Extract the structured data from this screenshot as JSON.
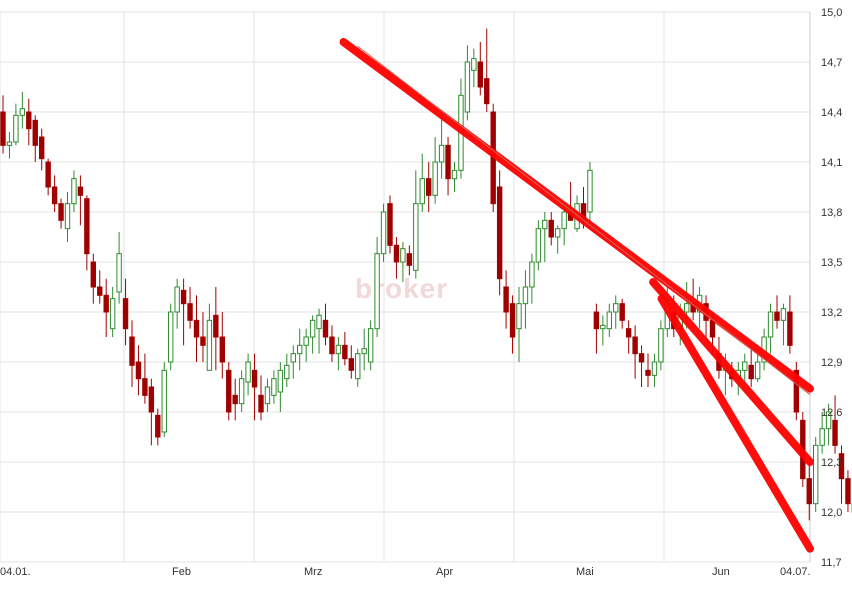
{
  "chart_data": {
    "type": "candlestick",
    "title": "",
    "xlabel": "",
    "ylabel": "",
    "ylim": [
      11.7,
      15.0
    ],
    "y_ticks": [
      "15,0",
      "14,7",
      "14,4",
      "14,1",
      "13,8",
      "13,5",
      "13,2",
      "12,9",
      "12,6",
      "12,3",
      "12,0",
      "11,7"
    ],
    "x_ticks": [
      "04.01.",
      "Feb",
      "Mrz",
      "Apr",
      "Mai",
      "Jun",
      "04.07."
    ],
    "grid": true,
    "watermark": "broker",
    "colors": {
      "up": "#2e8b2e",
      "down": "#a10000",
      "trendline": "#ff0000",
      "grid": "#e3e3e3"
    },
    "candles": [
      [
        14.4,
        14.5,
        14.15,
        14.2
      ],
      [
        14.2,
        14.28,
        14.12,
        14.22
      ],
      [
        14.22,
        14.45,
        14.2,
        14.38
      ],
      [
        14.38,
        14.52,
        14.3,
        14.42
      ],
      [
        14.4,
        14.48,
        14.2,
        14.3
      ],
      [
        14.35,
        14.38,
        14.1,
        14.2
      ],
      [
        14.25,
        14.3,
        14.05,
        14.12
      ],
      [
        14.1,
        14.12,
        13.9,
        13.95
      ],
      [
        13.95,
        14.02,
        13.8,
        13.85
      ],
      [
        13.85,
        13.88,
        13.7,
        13.75
      ],
      [
        13.7,
        13.92,
        13.62,
        13.85
      ],
      [
        13.85,
        14.05,
        13.8,
        14.0
      ],
      [
        13.95,
        14.02,
        13.72,
        13.9
      ],
      [
        13.88,
        13.9,
        13.45,
        13.55
      ],
      [
        13.5,
        13.55,
        13.25,
        13.35
      ],
      [
        13.35,
        13.45,
        13.25,
        13.3
      ],
      [
        13.3,
        13.4,
        13.05,
        13.2
      ],
      [
        13.1,
        13.35,
        13.05,
        13.28
      ],
      [
        13.32,
        13.68,
        13.25,
        13.55
      ],
      [
        13.28,
        13.4,
        13.0,
        13.1
      ],
      [
        13.05,
        13.15,
        12.75,
        12.88
      ],
      [
        12.9,
        13.0,
        12.7,
        12.8
      ],
      [
        12.8,
        12.95,
        12.65,
        12.7
      ],
      [
        12.75,
        12.8,
        12.4,
        12.6
      ],
      [
        12.58,
        12.62,
        12.4,
        12.45
      ],
      [
        12.48,
        12.9,
        12.45,
        12.85
      ],
      [
        12.9,
        13.25,
        12.85,
        13.2
      ],
      [
        13.2,
        13.4,
        13.1,
        13.35
      ],
      [
        13.33,
        13.4,
        13.0,
        13.25
      ],
      [
        13.25,
        13.35,
        13.1,
        13.15
      ],
      [
        13.15,
        13.3,
        12.9,
        13.05
      ],
      [
        13.05,
        13.2,
        12.9,
        13.0
      ],
      [
        12.85,
        13.25,
        12.85,
        13.15
      ],
      [
        13.18,
        13.35,
        12.85,
        13.05
      ],
      [
        13.05,
        13.2,
        12.8,
        12.9
      ],
      [
        12.85,
        12.9,
        12.55,
        12.6
      ],
      [
        12.7,
        12.8,
        12.55,
        12.65
      ],
      [
        12.65,
        12.85,
        12.6,
        12.8
      ],
      [
        12.78,
        12.95,
        12.7,
        12.9
      ],
      [
        12.85,
        12.95,
        12.55,
        12.75
      ],
      [
        12.7,
        12.82,
        12.55,
        12.6
      ],
      [
        12.65,
        12.8,
        12.6,
        12.75
      ],
      [
        12.7,
        12.85,
        12.65,
        12.8
      ],
      [
        12.72,
        12.9,
        12.6,
        12.85
      ],
      [
        12.8,
        12.95,
        12.75,
        12.88
      ],
      [
        12.9,
        13.0,
        12.8,
        12.95
      ],
      [
        12.95,
        13.1,
        12.85,
        13.0
      ],
      [
        13.0,
        13.1,
        12.9,
        13.05
      ],
      [
        13.05,
        13.18,
        12.95,
        13.15
      ],
      [
        13.1,
        13.22,
        12.95,
        13.18
      ],
      [
        13.15,
        13.25,
        13.0,
        13.05
      ],
      [
        13.05,
        13.12,
        12.9,
        12.95
      ],
      [
        12.95,
        13.05,
        12.85,
        13.0
      ],
      [
        13.0,
        13.08,
        12.88,
        12.92
      ],
      [
        12.92,
        13.0,
        12.8,
        12.85
      ],
      [
        12.8,
        12.98,
        12.75,
        12.95
      ],
      [
        12.95,
        13.1,
        12.85,
        12.98
      ],
      [
        12.9,
        13.15,
        12.85,
        13.1
      ],
      [
        13.1,
        13.65,
        13.05,
        13.55
      ],
      [
        13.55,
        13.85,
        13.5,
        13.8
      ],
      [
        13.85,
        13.9,
        13.55,
        13.6
      ],
      [
        13.6,
        13.65,
        13.4,
        13.5
      ],
      [
        13.5,
        13.62,
        13.38,
        13.58
      ],
      [
        13.55,
        13.6,
        13.42,
        13.48
      ],
      [
        13.45,
        14.05,
        13.4,
        13.85
      ],
      [
        13.85,
        14.15,
        13.8,
        14.0
      ],
      [
        14.0,
        14.1,
        13.8,
        13.9
      ],
      [
        13.9,
        14.25,
        13.85,
        14.1
      ],
      [
        14.1,
        14.4,
        14.0,
        14.2
      ],
      [
        14.2,
        14.25,
        13.9,
        14.0
      ],
      [
        14.0,
        14.1,
        13.92,
        14.05
      ],
      [
        14.05,
        14.6,
        14.0,
        14.5
      ],
      [
        14.4,
        14.8,
        14.35,
        14.7
      ],
      [
        14.65,
        14.78,
        14.55,
        14.72
      ],
      [
        14.7,
        14.82,
        14.5,
        14.55
      ],
      [
        14.6,
        14.9,
        14.4,
        14.45
      ],
      [
        14.4,
        14.45,
        13.8,
        13.85
      ],
      [
        13.95,
        14.05,
        13.3,
        13.4
      ],
      [
        13.35,
        13.45,
        13.1,
        13.2
      ],
      [
        13.25,
        13.3,
        12.95,
        13.05
      ],
      [
        13.1,
        13.35,
        12.9,
        13.25
      ],
      [
        13.25,
        13.45,
        13.1,
        13.35
      ],
      [
        13.35,
        13.55,
        13.25,
        13.5
      ],
      [
        13.5,
        13.75,
        13.45,
        13.7
      ],
      [
        13.7,
        13.8,
        13.5,
        13.75
      ],
      [
        13.75,
        13.8,
        13.6,
        13.65
      ],
      [
        13.65,
        13.72,
        13.55,
        13.7
      ],
      [
        13.7,
        13.85,
        13.6,
        13.8
      ],
      [
        13.8,
        13.98,
        13.75,
        13.75
      ],
      [
        13.7,
        13.9,
        13.68,
        13.85
      ],
      [
        13.85,
        13.95,
        13.7,
        13.75
      ],
      [
        13.8,
        14.1,
        13.72,
        14.05
      ],
      [
        13.2,
        13.25,
        12.95,
        13.1
      ],
      [
        13.1,
        13.18,
        13.0,
        13.12
      ],
      [
        13.1,
        13.25,
        13.05,
        13.2
      ],
      [
        13.2,
        13.3,
        13.1,
        13.25
      ],
      [
        13.25,
        13.28,
        13.1,
        13.15
      ],
      [
        13.1,
        13.15,
        12.95,
        13.05
      ],
      [
        13.05,
        13.12,
        12.8,
        12.95
      ],
      [
        12.95,
        13.0,
        12.75,
        12.9
      ],
      [
        12.85,
        12.95,
        12.75,
        12.82
      ],
      [
        12.82,
        12.95,
        12.75,
        12.9
      ],
      [
        12.9,
        13.15,
        12.85,
        13.1
      ],
      [
        13.1,
        13.35,
        13.05,
        13.28
      ],
      [
        13.2,
        13.3,
        13.05,
        13.1
      ],
      [
        13.1,
        13.25,
        13.0,
        13.18
      ],
      [
        13.2,
        13.38,
        13.1,
        13.25
      ],
      [
        13.25,
        13.4,
        13.15,
        13.2
      ],
      [
        13.2,
        13.35,
        13.1,
        13.3
      ],
      [
        13.25,
        13.3,
        13.05,
        13.15
      ],
      [
        13.15,
        13.2,
        12.95,
        13.05
      ],
      [
        12.95,
        13.05,
        12.8,
        12.85
      ],
      [
        12.85,
        12.95,
        12.7,
        12.88
      ],
      [
        12.85,
        12.9,
        12.75,
        12.8
      ],
      [
        12.8,
        12.9,
        12.7,
        12.85
      ],
      [
        12.85,
        12.95,
        12.78,
        12.9
      ],
      [
        12.88,
        13.0,
        12.75,
        12.8
      ],
      [
        12.8,
        12.95,
        12.78,
        12.9
      ],
      [
        12.9,
        13.1,
        12.85,
        13.05
      ],
      [
        13.05,
        13.25,
        12.95,
        13.2
      ],
      [
        13.2,
        13.3,
        13.1,
        13.15
      ],
      [
        13.15,
        13.25,
        13.0,
        13.22
      ],
      [
        13.2,
        13.3,
        12.95,
        13.0
      ],
      [
        12.85,
        12.9,
        12.55,
        12.6
      ],
      [
        12.55,
        12.6,
        12.15,
        12.2
      ],
      [
        12.2,
        12.3,
        11.95,
        12.05
      ],
      [
        12.05,
        12.45,
        12.0,
        12.4
      ],
      [
        12.4,
        12.6,
        12.35,
        12.5
      ],
      [
        12.5,
        12.65,
        12.4,
        12.6
      ],
      [
        12.55,
        12.7,
        12.35,
        12.4
      ],
      [
        12.35,
        12.4,
        12.05,
        12.2
      ],
      [
        12.2,
        12.25,
        12.0,
        12.05
      ],
      [
        12.05,
        12.15,
        11.9,
        12.0
      ],
      [
        12.0,
        12.25,
        11.95,
        12.15
      ]
    ],
    "trendlines": [
      {
        "from": [
          "2022-03-26",
          14.82
        ],
        "to": [
          "2022-07-14",
          12.74
        ]
      },
      {
        "from": [
          "2022-06-07",
          13.38
        ],
        "to": [
          "2022-07-14",
          12.3
        ]
      },
      {
        "from": [
          "2022-06-09",
          13.28
        ],
        "to": [
          "2022-07-14",
          11.78
        ]
      }
    ]
  }
}
